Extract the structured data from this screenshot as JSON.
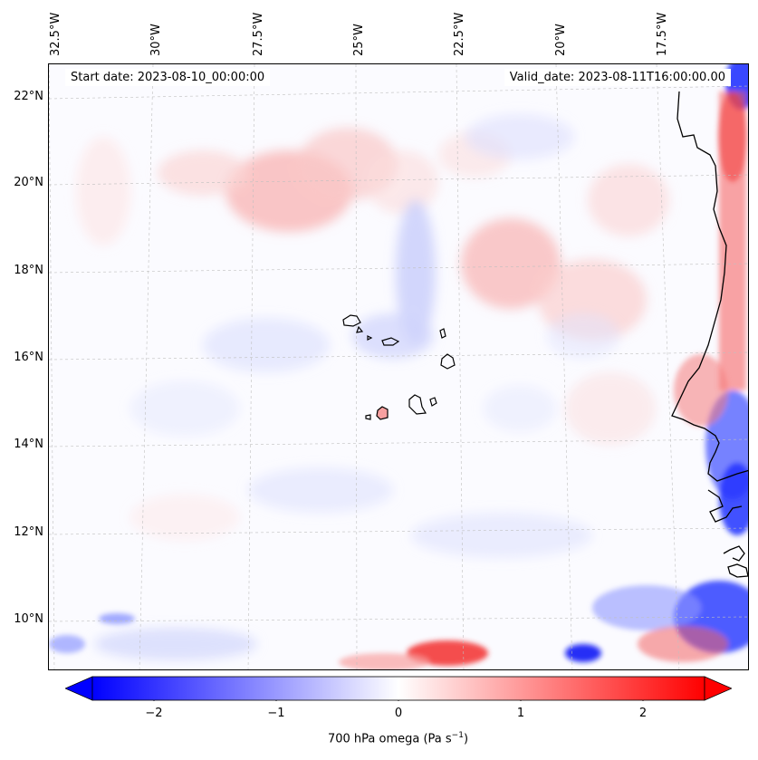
{
  "header": {
    "start_date": "Start date: 2023-08-10_00:00:00",
    "valid_date": "Valid_date: 2023-08-11T16:00:00.00"
  },
  "axes": {
    "lat_labels": [
      "22°N",
      "20°N",
      "18°N",
      "16°N",
      "14°N",
      "12°N",
      "10°N"
    ],
    "lon_labels": [
      "32.5°W",
      "30°W",
      "27.5°W",
      "25°W",
      "22.5°W",
      "20°W",
      "17.5°W"
    ]
  },
  "colorbar": {
    "label": "700 hPa omega (Pa s",
    "label_sup": "−1",
    "label_end": ")",
    "ticks": [
      "−2",
      "−1",
      "0",
      "1",
      "2"
    ],
    "cmap": "bwr",
    "range": [
      -2.5,
      2.5
    ],
    "colors": {
      "negative": "#0000ff",
      "zero": "#ffffff",
      "positive": "#ff0000"
    }
  }
}
